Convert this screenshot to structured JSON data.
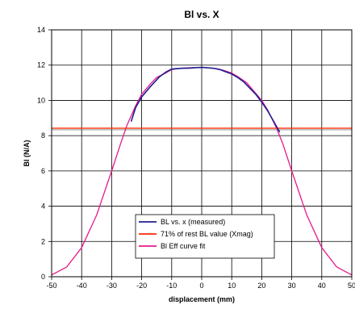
{
  "chart_data": {
    "type": "line",
    "title": "Bl vs. X",
    "xlabel": "displacement (mm)",
    "ylabel": "Bl (N/A)",
    "xlim": [
      -50,
      50
    ],
    "ylim": [
      0,
      14
    ],
    "xticks": [
      "-50",
      "-40",
      "-30",
      "-20",
      "-10",
      "0",
      "10",
      "20",
      "30",
      "40",
      "50"
    ],
    "yticks": [
      "0",
      "2",
      "4",
      "6",
      "8",
      "10",
      "12",
      "14"
    ],
    "grid": true,
    "legend_position": "bottom-center",
    "series": [
      {
        "name": "BL vs. x (measured)",
        "color": "#1f1f8f",
        "x": [
          -23.5,
          -22,
          -20,
          -17,
          -14,
          -12,
          -10,
          -7,
          -4,
          -2,
          0,
          2,
          4,
          6,
          8,
          10,
          12,
          14,
          16,
          18,
          20,
          22,
          24,
          26
        ],
        "y": [
          8.8,
          9.6,
          10.2,
          10.8,
          11.35,
          11.6,
          11.78,
          11.82,
          11.83,
          11.86,
          11.87,
          11.85,
          11.82,
          11.75,
          11.62,
          11.5,
          11.3,
          11.05,
          10.7,
          10.35,
          9.9,
          9.4,
          8.8,
          8.2
        ]
      },
      {
        "name": "71% of rest BL value (Xmag)",
        "color": "#ff2a00",
        "x": [
          -50,
          50
        ],
        "y": [
          8.42,
          8.42
        ]
      },
      {
        "name": "Bl Eff curve fit",
        "color": "#e6198c",
        "x": [
          -50,
          -45,
          -40,
          -35,
          -30,
          -27,
          -25,
          -22,
          -20,
          -17,
          -15,
          -12,
          -10,
          -7,
          -5,
          -2,
          0,
          2,
          5,
          7,
          10,
          12,
          15,
          17,
          20,
          22,
          25,
          27,
          30,
          35,
          40,
          45,
          50
        ],
        "y": [
          0.1,
          0.55,
          1.65,
          3.5,
          6.0,
          7.55,
          8.55,
          9.7,
          10.35,
          10.95,
          11.3,
          11.55,
          11.75,
          11.82,
          11.84,
          11.86,
          11.87,
          11.85,
          11.8,
          11.72,
          11.55,
          11.35,
          11.0,
          10.6,
          10.0,
          9.45,
          8.4,
          7.55,
          6.0,
          3.5,
          1.65,
          0.55,
          0.1
        ]
      }
    ]
  }
}
